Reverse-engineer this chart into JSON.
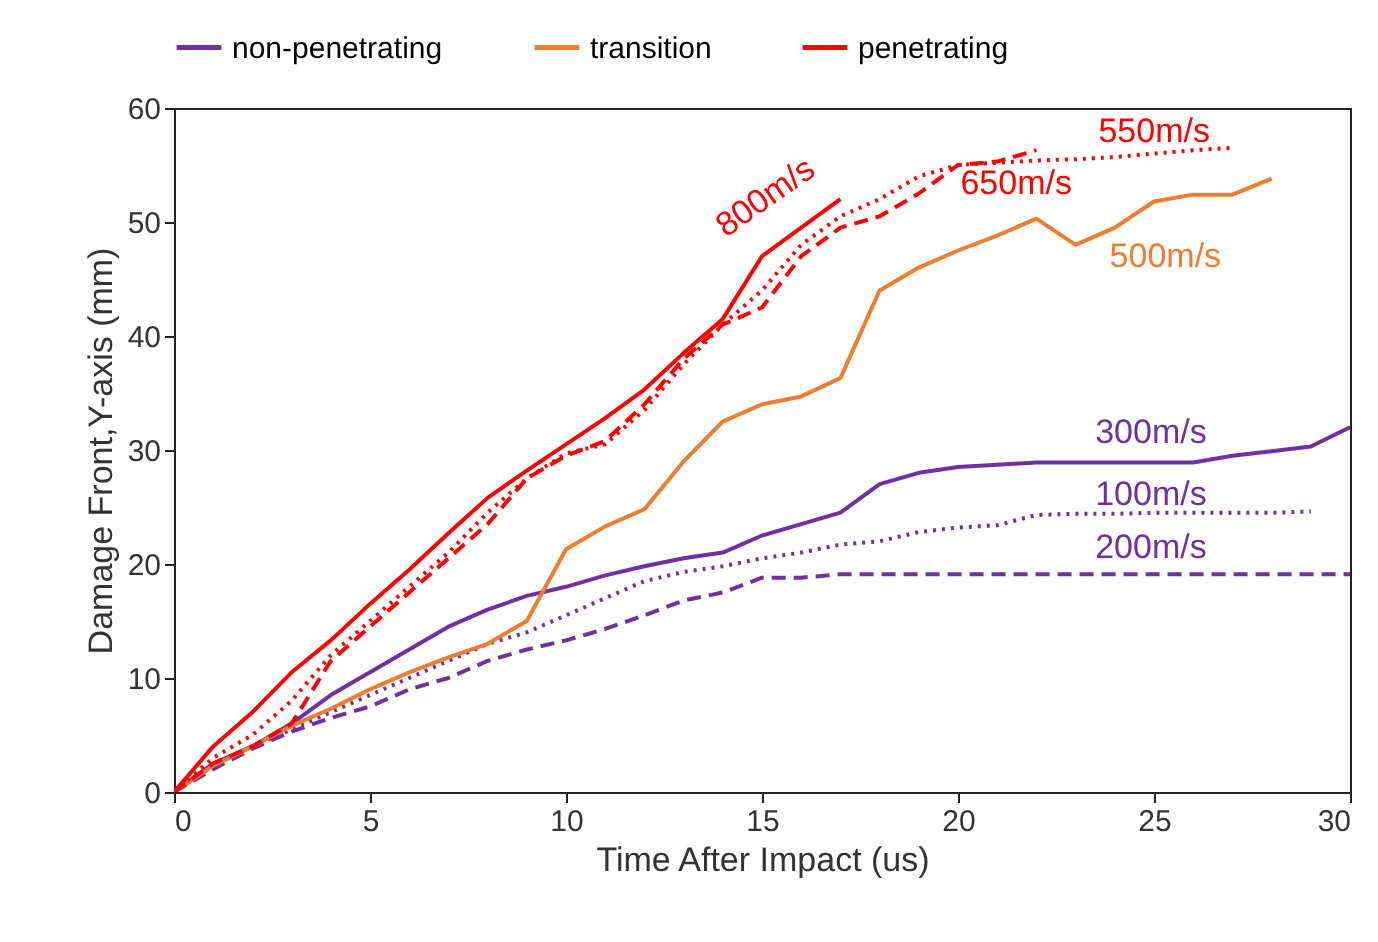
{
  "chart_data": {
    "type": "line",
    "xlabel": "Time After Impact (us)",
    "ylabel": "Damage Front,Y-axis (mm)",
    "xlim": [
      0,
      30
    ],
    "ylim": [
      0,
      60
    ],
    "xticks": [
      0,
      5,
      10,
      15,
      20,
      25,
      30
    ],
    "yticks": [
      0,
      10,
      20,
      30,
      40,
      50,
      60
    ],
    "legend": "top",
    "grid": false,
    "x": [
      0,
      1,
      2,
      3,
      4,
      5,
      6,
      7,
      8,
      9,
      10,
      11,
      12,
      13,
      14,
      15,
      16,
      17,
      18,
      19,
      20,
      21,
      22,
      23,
      24,
      25,
      26,
      27,
      28,
      29,
      30
    ],
    "series": [
      {
        "name": "300m/s",
        "color": "#7030a0",
        "line_style": "solid",
        "values": [
          0,
          2.5,
          4,
          6,
          8.5,
          10.5,
          12.5,
          14.5,
          16,
          17.2,
          18,
          19,
          19.8,
          20.5,
          21,
          22.5,
          23.5,
          24.5,
          27,
          28,
          28.5,
          28.7,
          28.9,
          28.9,
          28.9,
          28.9,
          28.9,
          29.5,
          29.9,
          30.3,
          32
        ]
      },
      {
        "name": "100m/s",
        "color": "#7030a0",
        "line_style": "dotted",
        "values": [
          0,
          2.3,
          4,
          5.5,
          7,
          8.5,
          10,
          11.5,
          13,
          14,
          15.5,
          17,
          18.5,
          19.3,
          19.8,
          20.5,
          21,
          21.7,
          22,
          22.8,
          23.2,
          23.4,
          24.3,
          24.4,
          24.4,
          24.5,
          24.5,
          24.5,
          24.5,
          24.6,
          null
        ]
      },
      {
        "name": "200m/s",
        "color": "#7030a0",
        "line_style": "dashed",
        "values": [
          0,
          2,
          3.8,
          5.3,
          6.5,
          7.5,
          9,
          10,
          11.5,
          12.5,
          13.3,
          14.3,
          15.5,
          16.8,
          17.5,
          18.8,
          18.8,
          19.1,
          19.1,
          19.1,
          19.1,
          19.1,
          19.1,
          19.1,
          19.1,
          19.1,
          19.1,
          19.1,
          19.1,
          19.1,
          19.1
        ]
      },
      {
        "name": "500m/s",
        "color": "#ed7d31",
        "line_style": "solid",
        "values": [
          0,
          2.3,
          4,
          5.8,
          7.3,
          9,
          10.5,
          11.8,
          13,
          15,
          21.3,
          23.3,
          24.8,
          29,
          32.5,
          34,
          34.7,
          36.3,
          44,
          46,
          47.5,
          48.8,
          50.3,
          48,
          49.5,
          51.8,
          52.4,
          52.4,
          53.8,
          null,
          null
        ]
      },
      {
        "name": "800m/s",
        "color": "#ff0000",
        "line_style": "solid",
        "values": [
          0,
          4,
          7,
          10.5,
          13.3,
          16.5,
          19.5,
          22.7,
          25.8,
          28.2,
          30.5,
          32.8,
          35.3,
          38.5,
          41.5,
          47,
          49.5,
          52,
          null,
          null,
          null,
          null,
          null,
          null,
          null,
          null,
          null,
          null,
          null,
          null,
          null
        ]
      },
      {
        "name": "550m/s",
        "color": "#ff0000",
        "line_style": "dotted",
        "values": [
          0,
          3,
          5,
          8,
          12,
          15,
          18,
          21,
          24.5,
          27.5,
          29.7,
          30.5,
          33.5,
          37.5,
          41,
          44,
          48,
          50.5,
          52,
          54,
          55,
          55.2,
          55.4,
          55.5,
          55.7,
          56,
          56.3,
          56.5,
          null,
          null,
          null
        ]
      },
      {
        "name": "650m/s",
        "color": "#ff0000",
        "line_style": "dashed",
        "values": [
          0,
          2.5,
          4,
          6,
          11.5,
          14.5,
          17.5,
          20.5,
          23.5,
          27.5,
          29.5,
          30.8,
          34,
          38,
          41,
          42.5,
          47,
          49.5,
          50.5,
          52.5,
          55,
          55.3,
          56.3,
          null,
          null,
          null,
          null,
          null,
          null,
          null,
          null
        ]
      }
    ],
    "annotations": [
      "non-penetrating",
      "transition",
      "penetrating"
    ]
  }
}
